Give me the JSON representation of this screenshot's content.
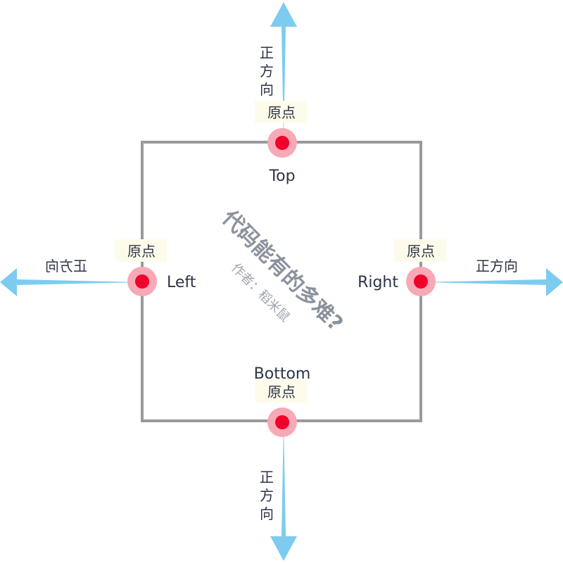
{
  "watermark": {
    "title": "代码能有的多难?",
    "author": "作者：稻米鼠"
  },
  "box": {
    "top_label": "Top",
    "left_label": "Left",
    "right_label": "Right",
    "bottom_label": "Bottom"
  },
  "origin_label": "原点",
  "direction_label": "正方向",
  "colors": {
    "box_stroke": "#9a9a9a",
    "arrow": "#7ecbf0",
    "origin_dot": "#f0002a",
    "origin_halo": "#f7a9b6",
    "label_bg": "#fdfbea",
    "text": "#2c3446"
  }
}
